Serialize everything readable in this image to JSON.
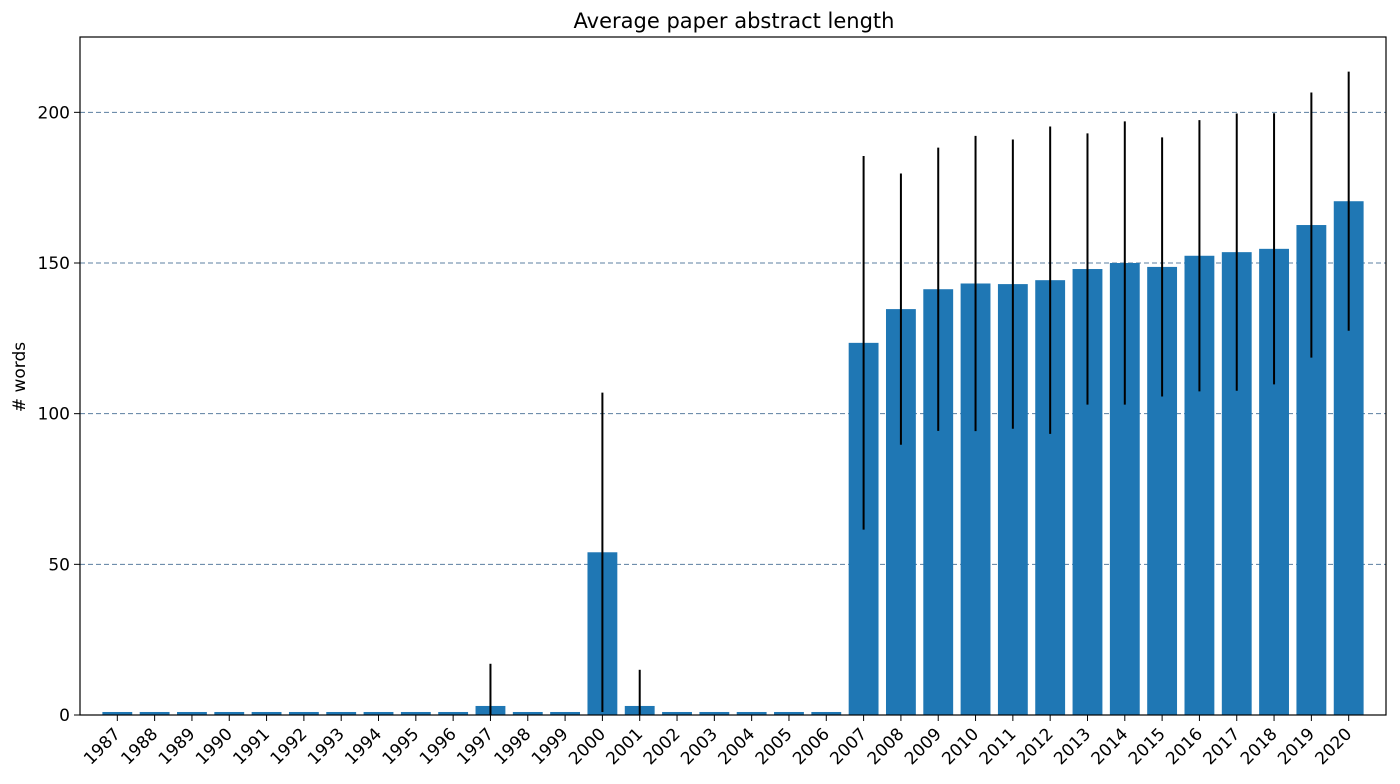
{
  "chart_data": {
    "type": "bar",
    "title": "Average paper abstract length",
    "xlabel": "",
    "ylabel": "# words",
    "ylim": [
      0,
      225
    ],
    "yticks": [
      0,
      50,
      100,
      150,
      200
    ],
    "grid": "horizontal dashed",
    "bar_color": "#1f77b4",
    "error_color": "#000000",
    "grid_color": "#5b7fa0",
    "categories": [
      "1987",
      "1988",
      "1989",
      "1990",
      "1991",
      "1992",
      "1993",
      "1994",
      "1995",
      "1996",
      "1997",
      "1998",
      "1999",
      "2000",
      "2001",
      "2002",
      "2003",
      "2004",
      "2005",
      "2006",
      "2007",
      "2008",
      "2009",
      "2010",
      "2011",
      "2012",
      "2013",
      "2014",
      "2015",
      "2016",
      "2017",
      "2018",
      "2019",
      "2020"
    ],
    "values": [
      1,
      1,
      1,
      1,
      1,
      1,
      1,
      1,
      1,
      1,
      3,
      1,
      1,
      54,
      3,
      1,
      1,
      1,
      1,
      1,
      123.5,
      134.7,
      141.3,
      143.2,
      143.0,
      144.3,
      148.0,
      150.0,
      148.7,
      152.4,
      153.6,
      154.7,
      162.6,
      170.5
    ],
    "errors": [
      0,
      0,
      0,
      0,
      0,
      0,
      0,
      0,
      0,
      0,
      14,
      0,
      0,
      53,
      12,
      0,
      0,
      0,
      0,
      0,
      62,
      45,
      47,
      49,
      48,
      51,
      45,
      47,
      43,
      45,
      46,
      45,
      44,
      43
    ]
  }
}
